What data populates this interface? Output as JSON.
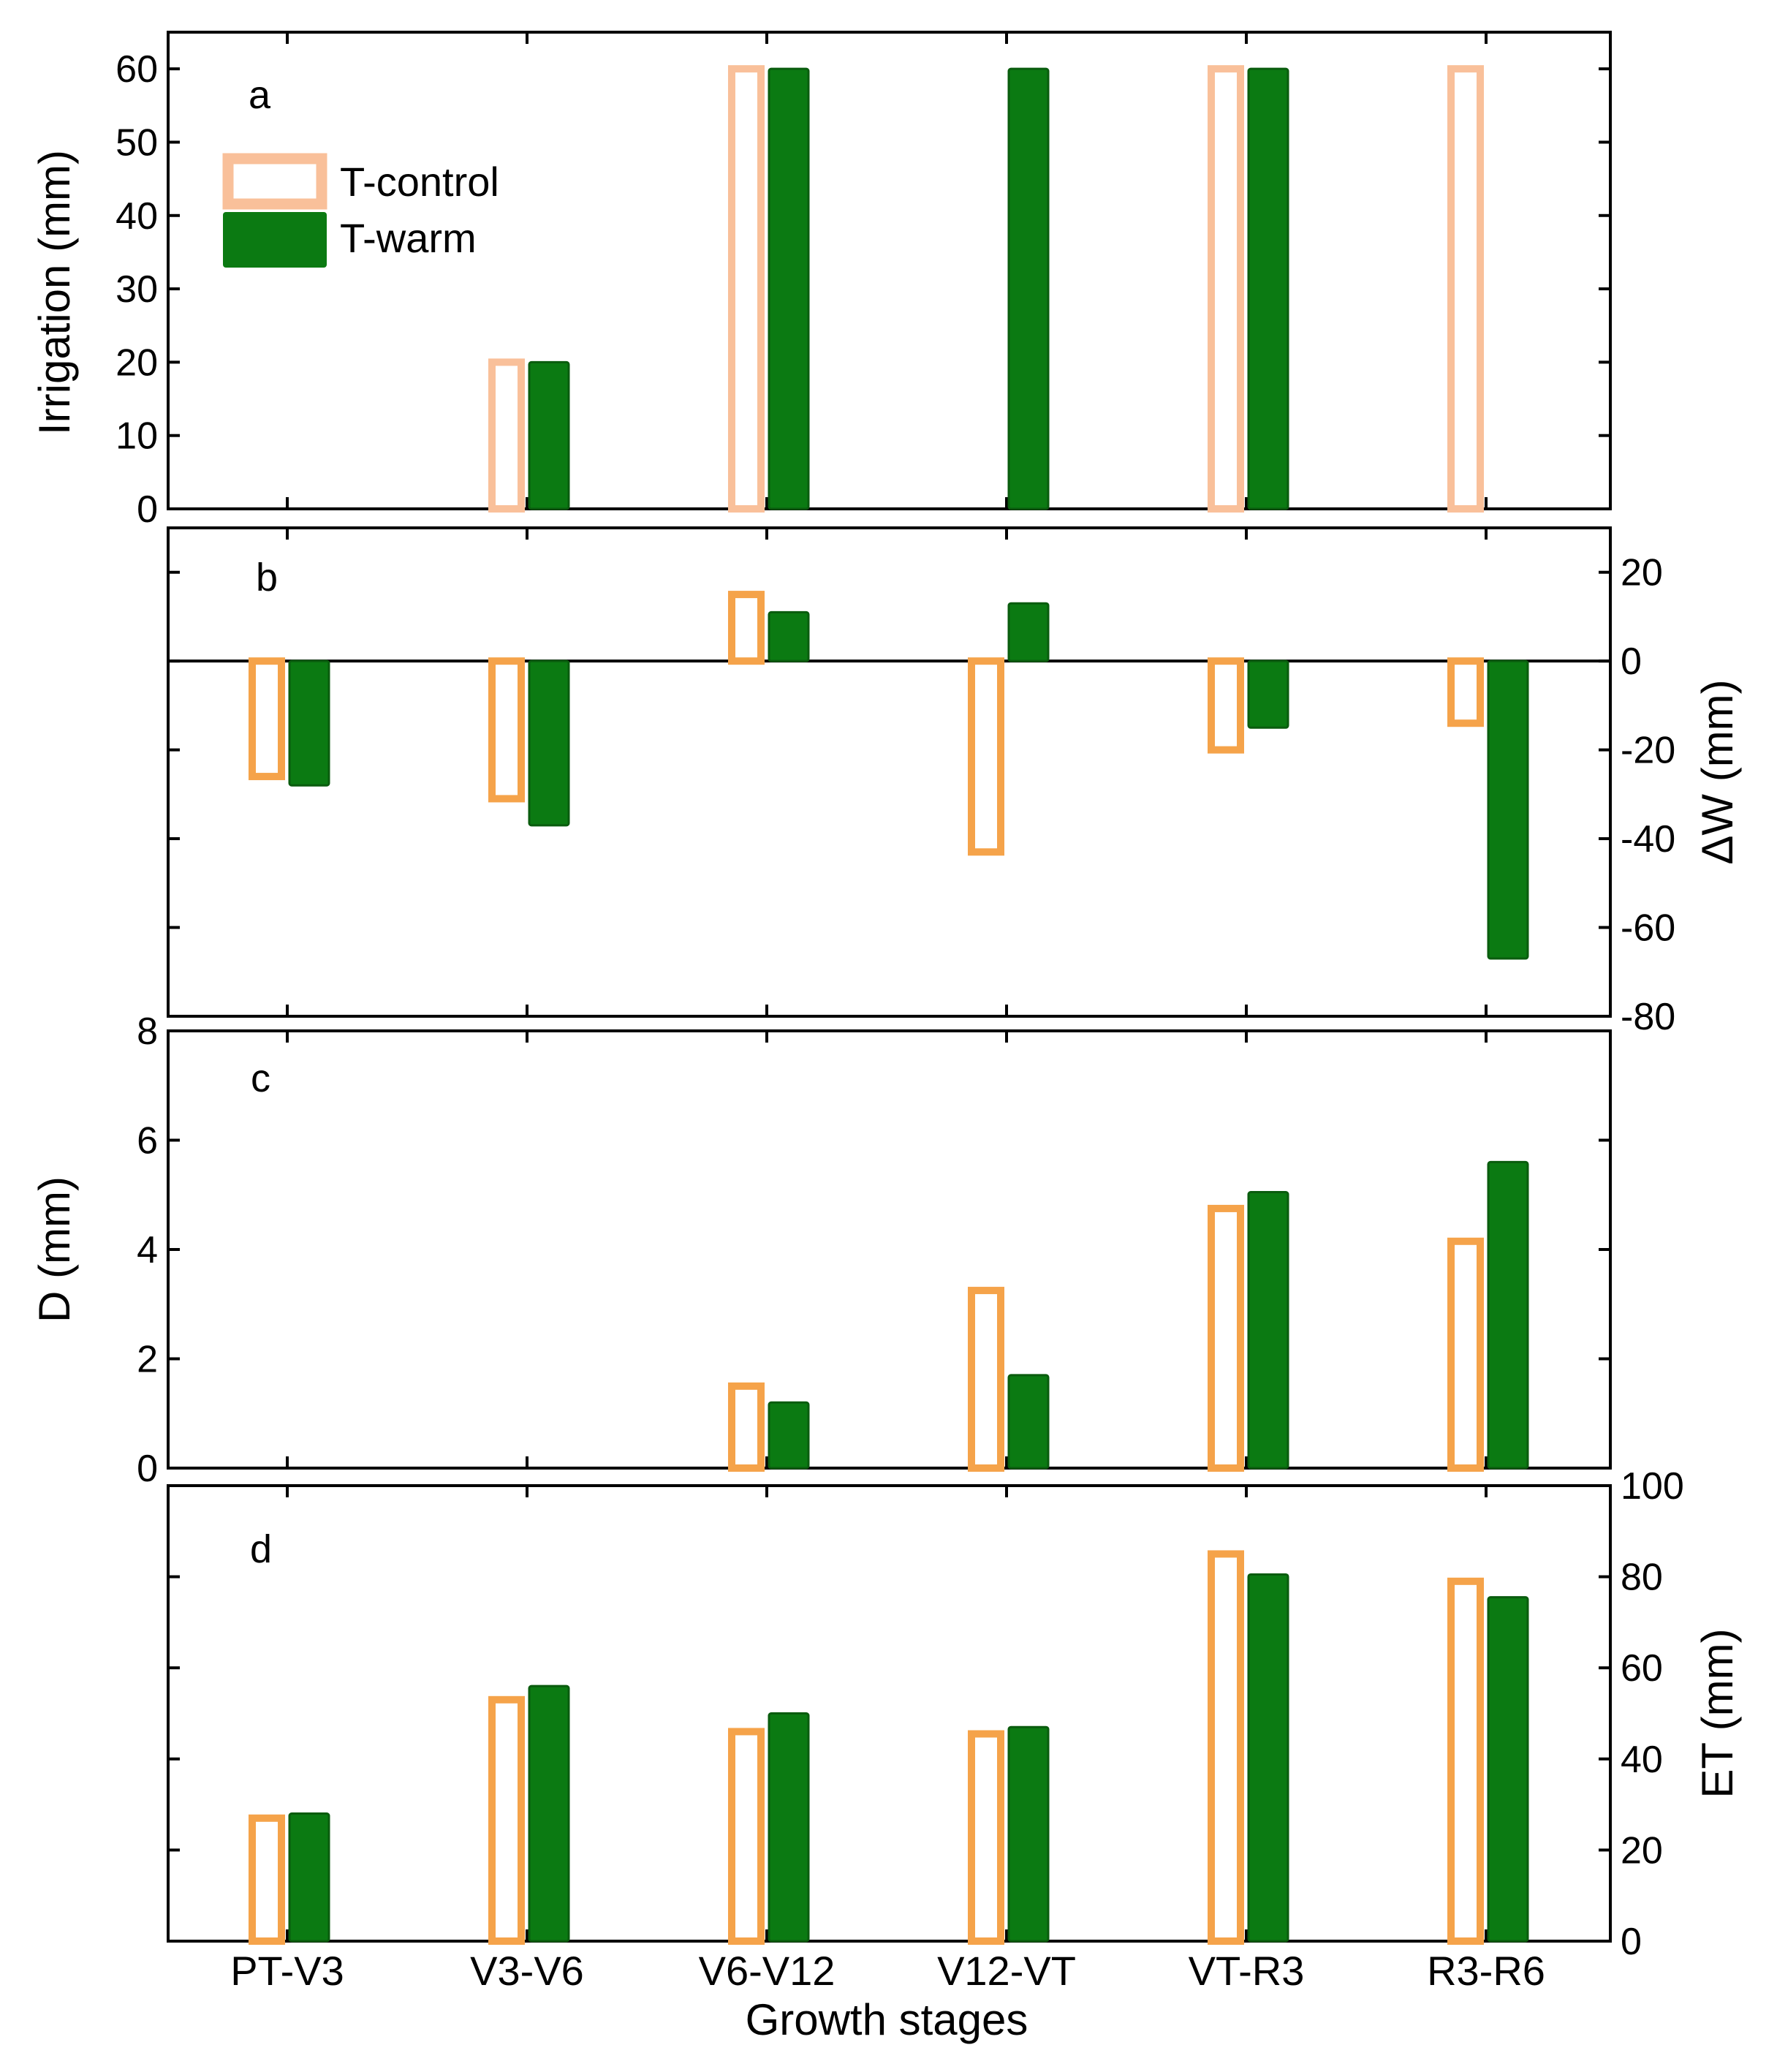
{
  "chart_data": {
    "type": "bar",
    "categories": [
      "PT-V3",
      "V3-V6",
      "V6-V12",
      "V12-VT",
      "VT-R3",
      "R3-R6"
    ],
    "xlabel": "Growth stages",
    "legend": {
      "position": "top-left of panel a",
      "entries": [
        {
          "name": "T-control",
          "style": "outline",
          "color": "#F5A34A",
          "color_panel_a": "#F9C09A"
        },
        {
          "name": "T-warm",
          "style": "filled",
          "color": "#0B7A12"
        }
      ]
    },
    "panels": [
      {
        "id": "a",
        "letter": "a",
        "ylabel": "Irrigation (mm)",
        "y_axis_side": "left",
        "ylim": [
          0,
          65
        ],
        "yticks": [
          0,
          10,
          20,
          30,
          40,
          50,
          60
        ],
        "baseline": 0,
        "series": [
          {
            "name": "T-control",
            "values": [
              0,
              20,
              60,
              0,
              60,
              60
            ]
          },
          {
            "name": "T-warm",
            "values": [
              0,
              20,
              60,
              60,
              60,
              0
            ]
          }
        ]
      },
      {
        "id": "b",
        "letter": "b",
        "ylabel": "ΔW (mm)",
        "y_axis_side": "right",
        "ylim": [
          -80,
          30
        ],
        "yticks": [
          -80,
          -60,
          -40,
          -20,
          0,
          20
        ],
        "baseline": 0,
        "zero_line": true,
        "series": [
          {
            "name": "T-control",
            "values": [
              -26,
              -31,
              15,
              -43,
              -20,
              -14
            ]
          },
          {
            "name": "T-warm",
            "values": [
              -28,
              -37,
              11,
              13,
              -15,
              -67
            ]
          }
        ]
      },
      {
        "id": "c",
        "letter": "c",
        "ylabel": "D (mm)",
        "y_axis_side": "left",
        "ylim": [
          0,
          8
        ],
        "yticks": [
          0,
          2,
          4,
          6,
          8
        ],
        "baseline": 0,
        "series": [
          {
            "name": "T-control",
            "values": [
              0,
              0,
              1.5,
              3.25,
              4.75,
              4.15
            ]
          },
          {
            "name": "T-warm",
            "values": [
              0,
              0,
              1.2,
              1.7,
              5.05,
              5.6
            ]
          }
        ]
      },
      {
        "id": "d",
        "letter": "d",
        "ylabel": "ET (mm)",
        "y_axis_side": "right",
        "ylim": [
          0,
          100
        ],
        "yticks": [
          0,
          20,
          40,
          60,
          80,
          100
        ],
        "baseline": 0,
        "series": [
          {
            "name": "T-control",
            "values": [
              27,
              53,
              46,
              45.5,
              85,
              79
            ]
          },
          {
            "name": "T-warm",
            "values": [
              28,
              56,
              50,
              47,
              80.5,
              75.5
            ]
          }
        ]
      }
    ]
  }
}
